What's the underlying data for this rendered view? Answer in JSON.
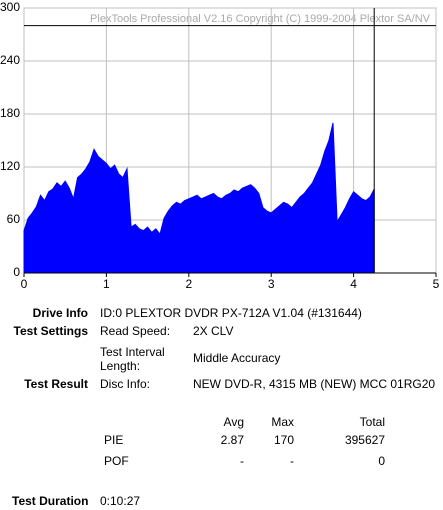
{
  "chart_data": {
    "type": "area",
    "watermark": "PlexTools Professional V2.16 Copyright (C) 1999-2004 Plextor SA/NV",
    "x": [
      0,
      0.05,
      0.1,
      0.15,
      0.2,
      0.25,
      0.3,
      0.35,
      0.4,
      0.45,
      0.5,
      0.55,
      0.6,
      0.65,
      0.7,
      0.75,
      0.8,
      0.85,
      0.9,
      0.95,
      1,
      1.05,
      1.1,
      1.15,
      1.2,
      1.25,
      1.3,
      1.35,
      1.4,
      1.45,
      1.5,
      1.55,
      1.6,
      1.65,
      1.7,
      1.75,
      1.8,
      1.85,
      1.9,
      1.95,
      2,
      2.05,
      2.1,
      2.15,
      2.2,
      2.25,
      2.3,
      2.35,
      2.4,
      2.45,
      2.5,
      2.55,
      2.6,
      2.65,
      2.7,
      2.75,
      2.8,
      2.85,
      2.9,
      2.95,
      3,
      3.05,
      3.1,
      3.15,
      3.2,
      3.25,
      3.3,
      3.35,
      3.4,
      3.45,
      3.5,
      3.55,
      3.6,
      3.65,
      3.7,
      3.75,
      3.8,
      3.85,
      3.9,
      3.95,
      4,
      4.05,
      4.1,
      4.15,
      4.2,
      4.25
    ],
    "values": [
      48,
      62,
      68,
      75,
      88,
      82,
      92,
      95,
      102,
      98,
      104,
      96,
      84,
      108,
      112,
      118,
      126,
      140,
      132,
      128,
      124,
      118,
      122,
      112,
      108,
      118,
      52,
      55,
      50,
      48,
      52,
      46,
      50,
      44,
      62,
      70,
      76,
      80,
      78,
      82,
      84,
      86,
      88,
      84,
      86,
      88,
      90,
      86,
      84,
      88,
      90,
      94,
      92,
      96,
      98,
      100,
      96,
      90,
      74,
      70,
      68,
      72,
      76,
      80,
      78,
      74,
      80,
      86,
      90,
      96,
      102,
      112,
      122,
      138,
      150,
      170,
      58,
      66,
      74,
      84,
      92,
      88,
      84,
      82,
      86,
      95
    ],
    "color": "#0000ff",
    "xlim": [
      0,
      5
    ],
    "ylim": [
      0,
      300
    ],
    "xticks": [
      0,
      1,
      2,
      3,
      4,
      5
    ],
    "yticks": [
      0,
      60,
      120,
      180,
      240,
      300
    ],
    "grid": true,
    "vlines": [
      4.25
    ],
    "hlines": [
      280
    ]
  },
  "info": {
    "drive_info": {
      "label": "Drive Info",
      "value": "ID:0 PLEXTOR DVDR PX-712A V1.04 (#131644)"
    },
    "test_settings": {
      "label": "Test Settings",
      "read_speed_label": "Read Speed:",
      "read_speed": "2X CLV",
      "interval_label": "Test Interval Length:",
      "interval": "Middle Accuracy"
    },
    "test_result": {
      "label": "Test Result",
      "disc_label": "Disc Info:",
      "disc": "NEW DVD-R, 4315 MB (NEW) MCC 01RG20"
    },
    "stats": {
      "headers": [
        "Avg",
        "Max",
        "Total"
      ],
      "rows": [
        [
          "PIE",
          "2.87",
          "170",
          "395627"
        ],
        [
          "POF",
          "-",
          "-",
          "0"
        ]
      ]
    },
    "duration": {
      "label": "Test Duration",
      "value": "0:10:27"
    }
  }
}
